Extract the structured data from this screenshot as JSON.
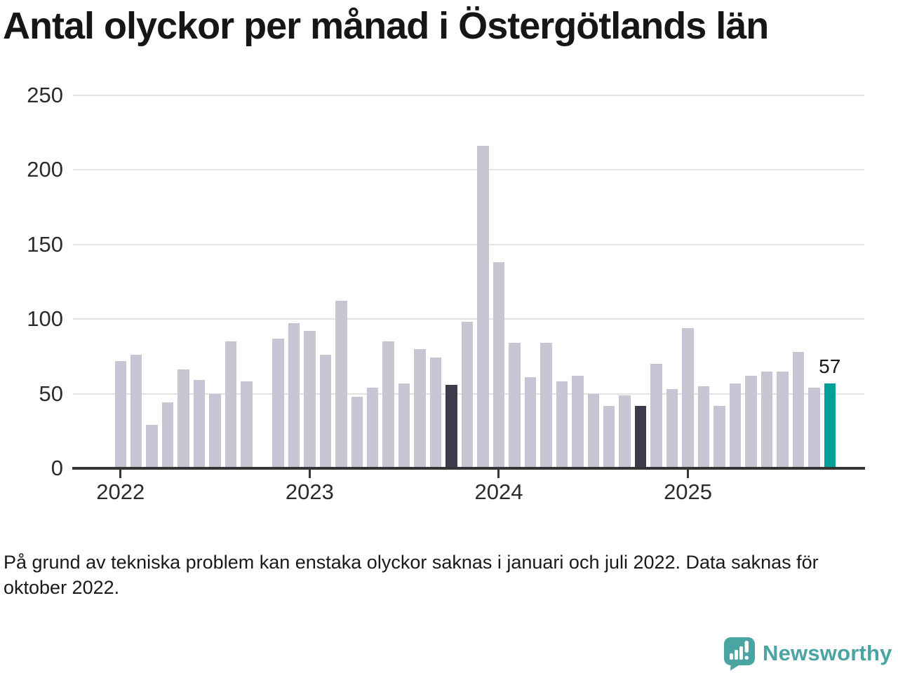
{
  "title": "Antal olyckor per månad i Östergötlands län",
  "chart_data": {
    "type": "bar",
    "title": "Antal olyckor per månad i Östergötlands län",
    "xlabel": "",
    "ylabel": "",
    "ylim": [
      0,
      250
    ],
    "yticks": [
      0,
      50,
      100,
      150,
      200,
      250
    ],
    "grid": true,
    "legend": "none",
    "categories": [
      "2022-01",
      "2022-02",
      "2022-03",
      "2022-04",
      "2022-05",
      "2022-06",
      "2022-07",
      "2022-08",
      "2022-09",
      "2022-10",
      "2022-11",
      "2022-12",
      "2023-01",
      "2023-02",
      "2023-03",
      "2023-04",
      "2023-05",
      "2023-06",
      "2023-07",
      "2023-08",
      "2023-09",
      "2023-10",
      "2023-11",
      "2023-12",
      "2024-01",
      "2024-02",
      "2024-03",
      "2024-04",
      "2024-05",
      "2024-06",
      "2024-07",
      "2024-08",
      "2024-09",
      "2024-10",
      "2024-11",
      "2024-12",
      "2025-01",
      "2025-02",
      "2025-03",
      "2025-04",
      "2025-05",
      "2025-06",
      "2025-07",
      "2025-08",
      "2025-09",
      "2025-10"
    ],
    "values": [
      72,
      76,
      29,
      44,
      66,
      59,
      50,
      85,
      58,
      null,
      87,
      97,
      92,
      76,
      112,
      48,
      54,
      85,
      57,
      80,
      74,
      56,
      98,
      216,
      138,
      84,
      61,
      84,
      58,
      62,
      50,
      42,
      49,
      42,
      70,
      53,
      94,
      55,
      42,
      57,
      62,
      65,
      65,
      78,
      54,
      57
    ],
    "missing_categories": [
      "2022-10"
    ],
    "highlight_indices": [
      21,
      33
    ],
    "latest_index": 45,
    "annotation": {
      "text": "57",
      "index": 45
    },
    "xticks": [
      {
        "label": "2022",
        "month_index": 0
      },
      {
        "label": "2023",
        "month_index": 12
      },
      {
        "label": "2024",
        "month_index": 24
      },
      {
        "label": "2025",
        "month_index": 36
      }
    ],
    "colors": {
      "bar_default": "#c6c5d3",
      "bar_highlight": "#3b3b4c",
      "bar_latest": "#00a099",
      "gridline": "#e3e3e3",
      "axis": "#363636",
      "text": "#161616"
    }
  },
  "footnote": {
    "lines": [
      "På grund av tekniska problem kan enstaka olyckor saknas i januari och juli 2022. Data saknas för",
      "oktober 2022."
    ]
  },
  "logo": {
    "text": "Newsworthy",
    "icon": "newsworthy-speech-bubble-chart-icon",
    "color": "#4aa5a2"
  }
}
